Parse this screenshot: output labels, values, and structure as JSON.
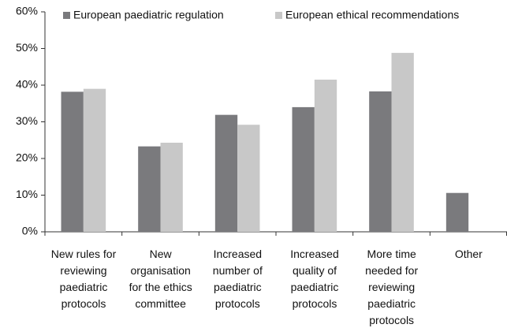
{
  "chart_data": {
    "type": "bar",
    "categories": [
      "New rules for\nreviewing\npaediatric\nprotocols",
      "New\norganisation\nfor the ethics\ncommittee",
      "Increased\nnumber of\npaediatric\nprotocols",
      "Increased\nquality of\npaediatric\nprotocols",
      "More time\nneeded for\nreviewing\npaediatric\nprotocols",
      "Other"
    ],
    "series": [
      {
        "name": "European paediatric regulation",
        "color": "#7a7a7d",
        "values": [
          38.2,
          23.3,
          31.9,
          34.0,
          38.3,
          10.6
        ]
      },
      {
        "name": "European ethical recommendations",
        "color": "#c8c8c8",
        "values": [
          39.0,
          24.3,
          29.2,
          41.5,
          48.8,
          null
        ]
      }
    ],
    "ylim": [
      0,
      60
    ],
    "yticks": [
      {
        "value": 0,
        "label": "0%"
      },
      {
        "value": 10,
        "label": "10%"
      },
      {
        "value": 20,
        "label": "20%"
      },
      {
        "value": 30,
        "label": "30%"
      },
      {
        "value": 40,
        "label": "40%"
      },
      {
        "value": 50,
        "label": "50%"
      },
      {
        "value": 60,
        "label": "60%"
      }
    ],
    "legend": "top"
  }
}
